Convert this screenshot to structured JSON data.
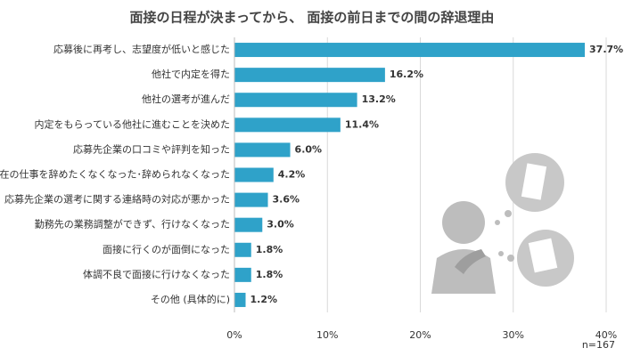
{
  "chart_data": {
    "type": "hbar",
    "title": "面接の日程が決まってから、 面接の前日までの間の辞退理由",
    "categories": [
      "応募後に再考し、志望度が低いと感じた",
      "他社で内定を得た",
      "他社の選考が進んだ",
      "内定をもらっている他社に進むことを決めた",
      "応募先企業の口コミや評判を知った",
      "現在の仕事を辞めたくなくなった･辞められなくなった",
      "応募先企業の選考に関する連絡時の対応が悪かった",
      "勤務先の業務調整ができず、行けなくなった",
      "面接に行くのが面倒になった",
      "体調不良で面接に行けなくなった",
      "その他 (具体的に)"
    ],
    "values": [
      37.7,
      16.2,
      13.2,
      11.4,
      6.0,
      4.2,
      3.6,
      3.0,
      1.8,
      1.8,
      1.2
    ],
    "value_labels": [
      "37.7%",
      "16.2%",
      "13.2%",
      "11.4%",
      "6.0%",
      "4.2%",
      "3.6%",
      "3.0%",
      "1.8%",
      "1.8%",
      "1.2%"
    ],
    "color": "#2fa2c9",
    "xlim": [
      0,
      40
    ],
    "xticks": [
      {
        "value": 0,
        "label": "0%"
      },
      {
        "value": 10,
        "label": "10%"
      },
      {
        "value": 20,
        "label": "20%"
      },
      {
        "value": 30,
        "label": "30%"
      },
      {
        "value": 40,
        "label": "40%"
      }
    ],
    "grid": true,
    "note": "n=167"
  }
}
